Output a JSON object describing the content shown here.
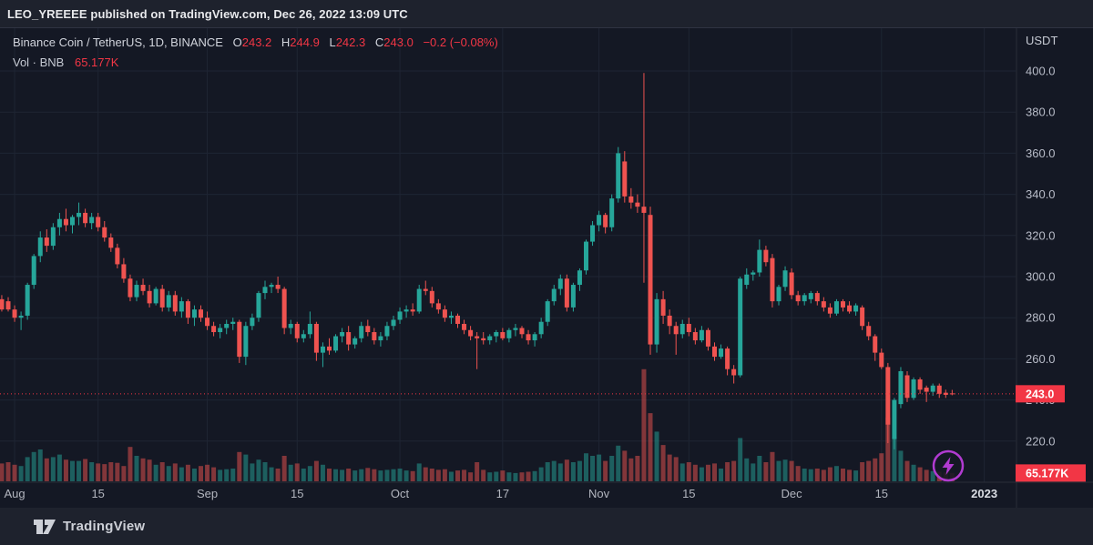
{
  "page": {
    "publisher_line": "LEO_YREEEE published on TradingView.com, Dec 26, 2022 13:09 UTC",
    "footer_brand": "TradingView"
  },
  "legend": {
    "title": "Binance Coin / TetherUS, 1D, BINANCE",
    "o_label": "O",
    "o": "243.2",
    "h_label": "H",
    "h": "244.9",
    "l_label": "L",
    "l": "242.3",
    "c_label": "C",
    "c": "243.0",
    "change": "−0.2 (−0.08%)",
    "vol_label": "Vol · BNB",
    "vol_value": "65.177K"
  },
  "badges": {
    "last_price": "243.0",
    "volume": "65.177K"
  },
  "axis": {
    "unit": "USDT"
  },
  "colors": {
    "up": "#26a69a",
    "down": "#ef5350",
    "accent_red": "#f23645",
    "chart_bg": "#141824",
    "panel_bg": "#1e222d",
    "grid": "#1e2533",
    "frame": "#2a2e39",
    "axis_text": "#b8bcc8",
    "time_text": "#b2b5be",
    "strong_text": "#dadde3",
    "boost_purple": "#b13bd1"
  },
  "chart_data": {
    "type": "candlestick",
    "symbol": "Binance Coin / TetherUS",
    "interval": "1D",
    "exchange": "BINANCE",
    "quote_unit": "USDT",
    "current_ohlc": {
      "open": 243.2,
      "high": 244.9,
      "low": 242.3,
      "close": 243.0,
      "change": "-0.2",
      "change_pct": "-0.08%"
    },
    "current_volume": "65.177K",
    "last_price": 243.0,
    "y_axis": {
      "visible_min": 212,
      "visible_max": 404,
      "grid_step": 20,
      "grid_prices": [
        400,
        380,
        360,
        340,
        320,
        300,
        280,
        260,
        240,
        220
      ],
      "labels": [
        "400.0",
        "380.0",
        "360.0",
        "340.0",
        "320.0",
        "300.0",
        "280.0",
        "260.0",
        "240.0",
        "220.0"
      ]
    },
    "x_axis": {
      "ticks": [
        {
          "i": 1,
          "label": "Aug"
        },
        {
          "i": 14,
          "label": "15"
        },
        {
          "i": 31,
          "label": "Sep"
        },
        {
          "i": 45,
          "label": "15"
        },
        {
          "i": 61,
          "label": "Oct"
        },
        {
          "i": 77,
          "label": "17"
        },
        {
          "i": 92,
          "label": "Nov"
        },
        {
          "i": 106,
          "label": "15"
        },
        {
          "i": 122,
          "label": "Dec"
        },
        {
          "i": 136,
          "label": "15"
        },
        {
          "i": 152,
          "label": "2023",
          "strong": true
        }
      ]
    },
    "pre_candle": [
      289,
      291,
      283,
      284,
      140
    ],
    "candles": [
      [
        288,
        290,
        283,
        284,
        150
      ],
      [
        284,
        286,
        278,
        280,
        130
      ],
      [
        280,
        283,
        274,
        281,
        120
      ],
      [
        281,
        297,
        279,
        296,
        190
      ],
      [
        296,
        311,
        294,
        310,
        230
      ],
      [
        310,
        322,
        307,
        319,
        250
      ],
      [
        319,
        323,
        312,
        315,
        180
      ],
      [
        315,
        326,
        313,
        324,
        190
      ],
      [
        324,
        331,
        320,
        328,
        210
      ],
      [
        328,
        333,
        322,
        325,
        170
      ],
      [
        325,
        330,
        321,
        329,
        160
      ],
      [
        329,
        336,
        325,
        331,
        160
      ],
      [
        331,
        333,
        324,
        326,
        175
      ],
      [
        326,
        331,
        323,
        329,
        150
      ],
      [
        329,
        331,
        322,
        324,
        140
      ],
      [
        324,
        327,
        317,
        319,
        135
      ],
      [
        319,
        321,
        312,
        314,
        150
      ],
      [
        314,
        316,
        304,
        306,
        145
      ],
      [
        306,
        309,
        297,
        299,
        120
      ],
      [
        299,
        301,
        288,
        290,
        270
      ],
      [
        290,
        298,
        288,
        296,
        200
      ],
      [
        296,
        299,
        291,
        293,
        180
      ],
      [
        293,
        296,
        285,
        287,
        170
      ],
      [
        287,
        295,
        286,
        294,
        130
      ],
      [
        294,
        296,
        283,
        285,
        150
      ],
      [
        285,
        293,
        283,
        291,
        120
      ],
      [
        291,
        293,
        281,
        283,
        140
      ],
      [
        283,
        290,
        280,
        288,
        110
      ],
      [
        288,
        289,
        277,
        280,
        130
      ],
      [
        280,
        286,
        276,
        284,
        100
      ],
      [
        284,
        286,
        278,
        280,
        120
      ],
      [
        280,
        283,
        274,
        276,
        130
      ],
      [
        276,
        278,
        271,
        273,
        110
      ],
      [
        273,
        277,
        270,
        275,
        90
      ],
      [
        275,
        279,
        272,
        277,
        95
      ],
      [
        277,
        280,
        274,
        278,
        100
      ],
      [
        278,
        279,
        258,
        261,
        230
      ],
      [
        261,
        278,
        257,
        276,
        210
      ],
      [
        276,
        282,
        274,
        280,
        140
      ],
      [
        280,
        293,
        278,
        292,
        170
      ],
      [
        292,
        298,
        289,
        295,
        150
      ],
      [
        295,
        297,
        292,
        296,
        110
      ],
      [
        296,
        300,
        292,
        294,
        100
      ],
      [
        294,
        295,
        272,
        275,
        200
      ],
      [
        275,
        279,
        272,
        277,
        130
      ],
      [
        277,
        278,
        268,
        270,
        140
      ],
      [
        270,
        274,
        268,
        272,
        100
      ],
      [
        272,
        283,
        270,
        277,
        120
      ],
      [
        277,
        278,
        259,
        263,
        160
      ],
      [
        263,
        268,
        256,
        266,
        130
      ],
      [
        266,
        270,
        262,
        264,
        100
      ],
      [
        264,
        272,
        263,
        271,
        95
      ],
      [
        271,
        275,
        268,
        273,
        90
      ],
      [
        273,
        276,
        264,
        267,
        100
      ],
      [
        267,
        271,
        265,
        270,
        85
      ],
      [
        270,
        278,
        268,
        276,
        95
      ],
      [
        276,
        279,
        271,
        273,
        105
      ],
      [
        273,
        275,
        267,
        269,
        95
      ],
      [
        269,
        273,
        266,
        271,
        85
      ],
      [
        271,
        278,
        269,
        276,
        90
      ],
      [
        276,
        281,
        274,
        279,
        95
      ],
      [
        279,
        285,
        277,
        283,
        100
      ],
      [
        283,
        286,
        280,
        284,
        85
      ],
      [
        284,
        287,
        281,
        283,
        80
      ],
      [
        283,
        296,
        282,
        294,
        140
      ],
      [
        294,
        298,
        291,
        293,
        110
      ],
      [
        293,
        295,
        285,
        287,
        100
      ],
      [
        287,
        289,
        282,
        284,
        90
      ],
      [
        284,
        286,
        278,
        280,
        95
      ],
      [
        280,
        283,
        277,
        281,
        75
      ],
      [
        281,
        282,
        275,
        277,
        85
      ],
      [
        277,
        279,
        272,
        274,
        90
      ],
      [
        274,
        276,
        269,
        271,
        70
      ],
      [
        271,
        273,
        255,
        270,
        150
      ],
      [
        270,
        273,
        267,
        269,
        90
      ],
      [
        269,
        272,
        267,
        271,
        70
      ],
      [
        271,
        274,
        268,
        273,
        75
      ],
      [
        273,
        275,
        269,
        270,
        85
      ],
      [
        270,
        275,
        268,
        274,
        70
      ],
      [
        274,
        277,
        271,
        275,
        65
      ],
      [
        275,
        276,
        270,
        272,
        70
      ],
      [
        272,
        274,
        267,
        269,
        75
      ],
      [
        269,
        273,
        266,
        272,
        80
      ],
      [
        272,
        280,
        270,
        278,
        110
      ],
      [
        278,
        289,
        276,
        288,
        150
      ],
      [
        288,
        296,
        286,
        294,
        160
      ],
      [
        294,
        301,
        291,
        299,
        140
      ],
      [
        299,
        301,
        283,
        285,
        170
      ],
      [
        285,
        297,
        283,
        296,
        150
      ],
      [
        296,
        304,
        293,
        303,
        160
      ],
      [
        303,
        318,
        301,
        317,
        220
      ],
      [
        317,
        327,
        315,
        325,
        200
      ],
      [
        325,
        332,
        322,
        330,
        210
      ],
      [
        330,
        331,
        321,
        324,
        160
      ],
      [
        324,
        340,
        322,
        338,
        200
      ],
      [
        338,
        363,
        336,
        360,
        280
      ],
      [
        356,
        361,
        336,
        339,
        240
      ],
      [
        339,
        343,
        333,
        336,
        180
      ],
      [
        336,
        340,
        331,
        334,
        200
      ],
      [
        334,
        399,
        297,
        331,
        880
      ],
      [
        330,
        334,
        262,
        267,
        535
      ],
      [
        267,
        292,
        263,
        289,
        390
      ],
      [
        289,
        293,
        277,
        281,
        285
      ],
      [
        281,
        284,
        272,
        276,
        210
      ],
      [
        276,
        278,
        262,
        272,
        190
      ],
      [
        272,
        279,
        270,
        277,
        140
      ],
      [
        277,
        280,
        271,
        273,
        150
      ],
      [
        273,
        275,
        267,
        269,
        130
      ],
      [
        269,
        276,
        268,
        274,
        110
      ],
      [
        274,
        275,
        264,
        266,
        130
      ],
      [
        266,
        268,
        259,
        261,
        140
      ],
      [
        261,
        267,
        260,
        265,
        100
      ],
      [
        265,
        266,
        252,
        255,
        150
      ],
      [
        255,
        257,
        248,
        252,
        160
      ],
      [
        252,
        300,
        251,
        299,
        340
      ],
      [
        296,
        304,
        294,
        301,
        180
      ],
      [
        301,
        303,
        298,
        302,
        140
      ],
      [
        302,
        318,
        300,
        313,
        200
      ],
      [
        313,
        315,
        305,
        307,
        150
      ],
      [
        309,
        311,
        285,
        288,
        230
      ],
      [
        288,
        296,
        286,
        295,
        160
      ],
      [
        295,
        305,
        293,
        303,
        170
      ],
      [
        302,
        304,
        289,
        291,
        160
      ],
      [
        291,
        293,
        286,
        288,
        120
      ],
      [
        288,
        292,
        286,
        291,
        100
      ],
      [
        289,
        293,
        287,
        292,
        95
      ],
      [
        292,
        293,
        286,
        288,
        100
      ],
      [
        288,
        290,
        283,
        285,
        90
      ],
      [
        285,
        287,
        280,
        282,
        110
      ],
      [
        282,
        289,
        281,
        288,
        120
      ],
      [
        288,
        289,
        283,
        285,
        100
      ],
      [
        286,
        288,
        282,
        283,
        90
      ],
      [
        283,
        287,
        281,
        286,
        85
      ],
      [
        285,
        286,
        274,
        276,
        150
      ],
      [
        276,
        278,
        269,
        271,
        160
      ],
      [
        271,
        272,
        259,
        263,
        180
      ],
      [
        263,
        265,
        255,
        256,
        220
      ],
      [
        256,
        258,
        219,
        228,
        500
      ],
      [
        221,
        241,
        216,
        240,
        350
      ],
      [
        238,
        256,
        236,
        254,
        240
      ],
      [
        252,
        254,
        239,
        241,
        160
      ],
      [
        241,
        251,
        240,
        250,
        130
      ],
      [
        250,
        251,
        243,
        245,
        110
      ],
      [
        246,
        247,
        239,
        244,
        90
      ],
      [
        244,
        248,
        242,
        247,
        80
      ],
      [
        247,
        248,
        241,
        243,
        75
      ],
      [
        243.5,
        245,
        241,
        242.5,
        70
      ],
      [
        243.2,
        244.9,
        242.3,
        243,
        65.177
      ]
    ]
  }
}
